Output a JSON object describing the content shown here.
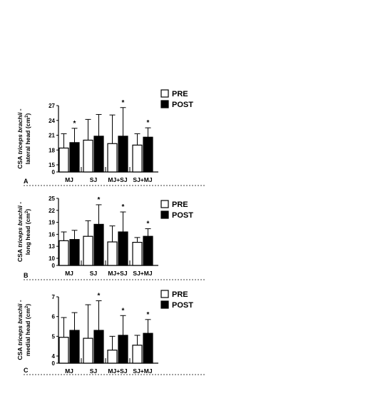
{
  "chart_data": [
    {
      "type": "bar",
      "panel_label": "A",
      "ylabel": [
        "CSA ",
        "triceps brachii",
        " -",
        "lateral head (cm",
        "2",
        ")"
      ],
      "yticks": [
        "0",
        "15",
        "18",
        "21",
        "24",
        "27"
      ],
      "ytick_values": [
        0,
        15,
        18,
        21,
        24,
        27
      ],
      "axis_break": true,
      "categories": [
        "MJ",
        "SJ",
        "MJ+SJ",
        "SJ+MJ"
      ],
      "legend": [
        "PRE",
        "POST"
      ],
      "legend_placement": "top-right",
      "series": [
        {
          "name": "PRE",
          "color": "#ffffff",
          "values": [
            18.4,
            20.0,
            19.3,
            19.0
          ],
          "errors": [
            2.9,
            4.2,
            5.8,
            2.3
          ],
          "significant": [
            false,
            false,
            false,
            false
          ]
        },
        {
          "name": "POST",
          "color": "#000000",
          "values": [
            19.5,
            20.8,
            20.8,
            20.6
          ],
          "errors": [
            2.9,
            4.4,
            5.8,
            1.9
          ],
          "significant": [
            true,
            false,
            true,
            true
          ]
        }
      ]
    },
    {
      "type": "bar",
      "panel_label": "B",
      "ylabel": [
        "CSA ",
        "triceps brachii",
        " -",
        "long head (cm",
        "2",
        ")"
      ],
      "yticks": [
        "0",
        "10",
        "13",
        "16",
        "19",
        "22",
        "25"
      ],
      "ytick_values": [
        0,
        10,
        13,
        16,
        19,
        22,
        25
      ],
      "axis_break": true,
      "categories": [
        "MJ",
        "SJ",
        "MJ+SJ",
        "SJ+MJ"
      ],
      "legend": [
        "PRE",
        "POST"
      ],
      "legend_placement": "top-right",
      "series": [
        {
          "name": "PRE",
          "color": "#ffffff",
          "values": [
            14.4,
            15.5,
            14.1,
            14.0
          ],
          "errors": [
            2.2,
            3.9,
            4.0,
            1.2
          ],
          "significant": [
            false,
            false,
            false,
            false
          ]
        },
        {
          "name": "POST",
          "color": "#000000",
          "values": [
            14.7,
            18.5,
            16.6,
            15.5
          ],
          "errors": [
            2.3,
            4.9,
            5.0,
            1.9
          ],
          "significant": [
            false,
            true,
            true,
            true
          ]
        }
      ]
    },
    {
      "type": "bar",
      "panel_label": "C",
      "ylabel": [
        "CSA ",
        "triceps brachii",
        " -",
        "medial head (cm",
        "2",
        ")"
      ],
      "yticks": [
        "0",
        "4",
        "5",
        "6",
        "7"
      ],
      "ytick_values": [
        0,
        4,
        5,
        6,
        7
      ],
      "axis_break": true,
      "categories": [
        "MJ",
        "SJ",
        "MJ+SJ",
        "SJ+MJ"
      ],
      "legend": [
        "PRE",
        "POST"
      ],
      "legend_placement": "top-right",
      "series": [
        {
          "name": "PRE",
          "color": "#ffffff",
          "values": [
            4.95,
            4.9,
            4.3,
            4.55
          ],
          "errors": [
            1.0,
            1.7,
            0.7,
            0.5
          ],
          "significant": [
            false,
            false,
            false,
            false
          ]
        },
        {
          "name": "POST",
          "color": "#000000",
          "values": [
            5.3,
            5.3,
            5.05,
            5.15
          ],
          "errors": [
            0.9,
            1.5,
            1.0,
            0.7
          ],
          "significant": [
            false,
            true,
            true,
            true
          ]
        }
      ]
    }
  ],
  "significance_marker": "*"
}
